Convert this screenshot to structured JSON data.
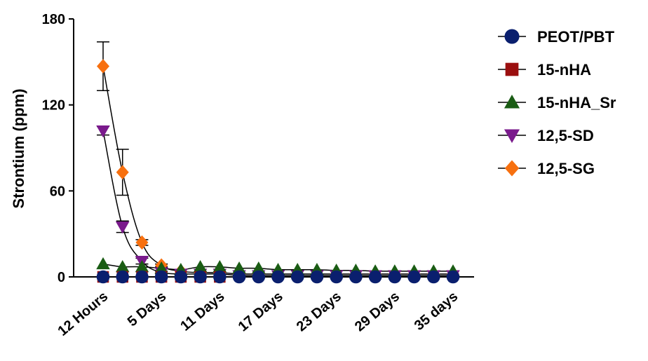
{
  "chart_data": {
    "type": "line",
    "ylabel": "Strontium (ppm)",
    "xlabel": "",
    "ylim": [
      0,
      180
    ],
    "yticks": [
      0,
      60,
      120,
      180
    ],
    "x": [
      0,
      1,
      2,
      3,
      4,
      5,
      6,
      7,
      8,
      9,
      10,
      11,
      12,
      13,
      14,
      15,
      16,
      17,
      18
    ],
    "xticks": [
      {
        "x": 0,
        "label": "12 Hours"
      },
      {
        "x": 3,
        "label": "5 Days"
      },
      {
        "x": 6,
        "label": "11 Days"
      },
      {
        "x": 9,
        "label": "17 Days"
      },
      {
        "x": 12,
        "label": "23 Days"
      },
      {
        "x": 15,
        "label": "29 Days"
      },
      {
        "x": 18,
        "label": "35 days"
      }
    ],
    "grid": false,
    "legend_position": "right",
    "series": [
      {
        "name": "PEOT/PBT",
        "marker": "circle",
        "color": "#0a1f6e",
        "values": [
          0,
          0,
          0,
          0,
          0,
          0,
          0,
          0,
          0,
          0,
          0,
          0,
          0,
          0,
          0,
          0,
          0,
          0,
          0
        ]
      },
      {
        "name": "15-nHA",
        "marker": "square",
        "color": "#9b0f0f",
        "values": [
          0,
          0,
          0,
          0,
          0,
          0,
          0,
          null,
          null,
          null,
          null,
          null,
          null,
          null,
          null,
          null,
          null,
          null,
          null
        ]
      },
      {
        "name": "15-nHA_Sr",
        "marker": "triangle-up",
        "color": "#1a5c14",
        "values": [
          9,
          7,
          7,
          6,
          5,
          7,
          7,
          6,
          6,
          5,
          5,
          5,
          4.5,
          4.5,
          4,
          4,
          4,
          4,
          4
        ]
      },
      {
        "name": "12,5-SD",
        "marker": "triangle-down",
        "color": "#7a1a8c",
        "values": [
          102,
          35,
          11,
          3,
          2,
          2,
          2,
          1,
          1,
          1,
          1,
          1,
          1,
          1,
          1,
          1,
          1,
          1,
          1
        ],
        "error": [
          3,
          4,
          2,
          1,
          0,
          0,
          0,
          0,
          0,
          0,
          0,
          0,
          0,
          0,
          0,
          0,
          0,
          0,
          0
        ]
      },
      {
        "name": "12,5-SG",
        "marker": "diamond",
        "color": "#f7700f",
        "values": [
          147,
          73,
          24,
          8,
          4,
          3,
          3,
          2,
          2,
          2,
          2,
          2,
          2,
          2,
          2,
          2,
          2,
          2,
          2
        ],
        "error": [
          17,
          16,
          2,
          1,
          0,
          0,
          0,
          0,
          0,
          0,
          0,
          0,
          0,
          0,
          0,
          0,
          0,
          0,
          0
        ]
      }
    ]
  }
}
